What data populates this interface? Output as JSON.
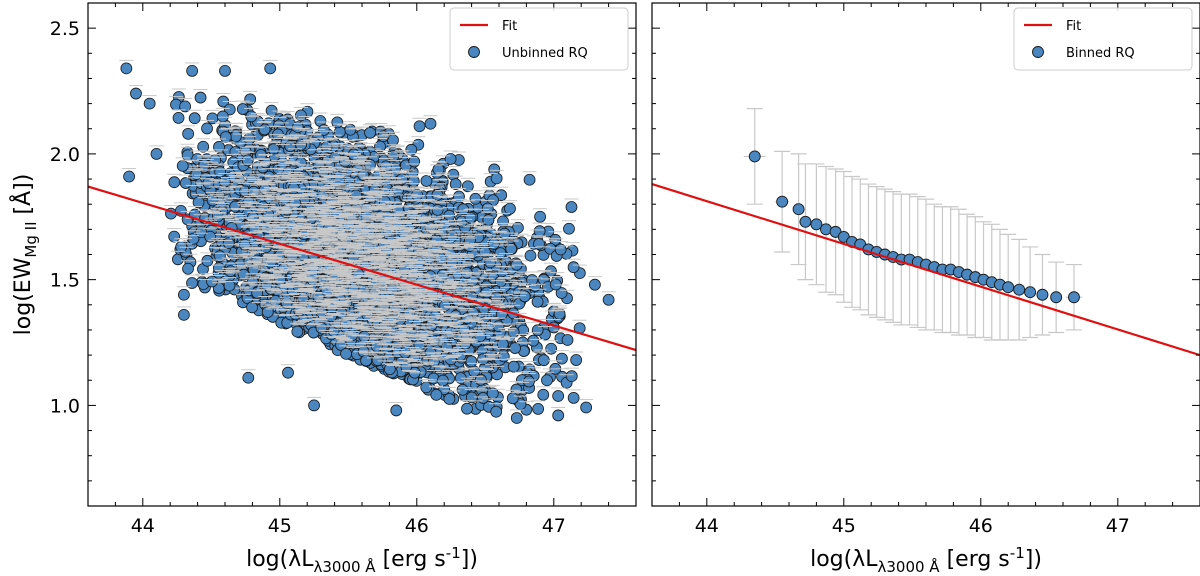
{
  "chart_data": [
    {
      "type": "scatter",
      "panel": "left",
      "xlabel": "log(λL_{λ3000 Å} [erg s^{-1}])",
      "ylabel": "log(EW_{Mg II} [Å])",
      "xlim": [
        43.6,
        47.6
      ],
      "ylim": [
        0.6,
        2.6
      ],
      "xticks": [
        44,
        45,
        46,
        47
      ],
      "yticks": [
        1.0,
        1.5,
        2.0,
        2.5
      ],
      "legend_position": "top-right",
      "colors": {
        "points": "#4a86bf",
        "fit": "#e01010",
        "errorbars": "#c8c8c8"
      },
      "series": [
        {
          "name": "Fit",
          "kind": "line",
          "x": [
            43.6,
            47.6
          ],
          "y": [
            1.87,
            1.22
          ]
        },
        {
          "name": "Unbinned RQ",
          "kind": "points",
          "notes": "dense cloud of several thousand points; centroid ~ (45.6, 1.55); listed points are readable outliers/extremes",
          "highlight_points": [
            [
              43.88,
              2.34
            ],
            [
              43.95,
              2.24
            ],
            [
              44.05,
              2.2
            ],
            [
              43.9,
              1.91
            ],
            [
              44.1,
              2.0
            ],
            [
              44.36,
              2.33
            ],
            [
              44.6,
              2.33
            ],
            [
              44.93,
              2.34
            ],
            [
              44.3,
              1.36
            ],
            [
              44.3,
              1.44
            ],
            [
              44.77,
              1.11
            ],
            [
              45.06,
              1.13
            ],
            [
              45.25,
              1.0
            ],
            [
              45.85,
              0.98
            ],
            [
              46.73,
              0.95
            ],
            [
              46.1,
              2.12
            ],
            [
              46.02,
              2.11
            ],
            [
              46.9,
              1.75
            ],
            [
              47.05,
              1.62
            ],
            [
              47.3,
              1.48
            ],
            [
              47.4,
              1.42
            ],
            [
              47.0,
              1.31
            ],
            [
              47.1,
              1.26
            ],
            [
              46.95,
              1.1
            ]
          ]
        }
      ]
    },
    {
      "type": "scatter",
      "panel": "right",
      "xlabel": "log(λL_{λ3000 Å} [erg s^{-1}])",
      "ylabel": "",
      "xlim": [
        43.6,
        47.6
      ],
      "ylim": [
        0.6,
        2.6
      ],
      "xticks": [
        44,
        45,
        46,
        47
      ],
      "yticks": [
        1.0,
        1.5,
        2.0,
        2.5
      ],
      "legend_position": "top-right",
      "colors": {
        "points": "#4a86bf",
        "fit": "#e01010",
        "errorbars": "#c8c8c8"
      },
      "series": [
        {
          "name": "Fit",
          "kind": "line",
          "x": [
            43.6,
            47.6
          ],
          "y": [
            1.88,
            1.2
          ]
        },
        {
          "name": "Binned RQ",
          "kind": "points",
          "x": [
            44.35,
            44.55,
            44.67,
            44.72,
            44.8,
            44.87,
            44.94,
            45.0,
            45.06,
            45.12,
            45.18,
            45.24,
            45.3,
            45.36,
            45.42,
            45.48,
            45.54,
            45.6,
            45.66,
            45.72,
            45.78,
            45.84,
            45.9,
            45.96,
            46.02,
            46.08,
            46.14,
            46.2,
            46.28,
            46.36,
            46.45,
            46.55,
            46.68
          ],
          "y": [
            1.99,
            1.81,
            1.78,
            1.73,
            1.72,
            1.7,
            1.69,
            1.67,
            1.65,
            1.64,
            1.62,
            1.61,
            1.6,
            1.59,
            1.58,
            1.58,
            1.57,
            1.56,
            1.55,
            1.54,
            1.54,
            1.53,
            1.52,
            1.51,
            1.5,
            1.49,
            1.48,
            1.47,
            1.46,
            1.45,
            1.44,
            1.43,
            1.43
          ],
          "yerr": [
            0.19,
            0.2,
            0.22,
            0.23,
            0.24,
            0.25,
            0.25,
            0.26,
            0.26,
            0.26,
            0.26,
            0.26,
            0.26,
            0.26,
            0.26,
            0.26,
            0.26,
            0.26,
            0.25,
            0.25,
            0.25,
            0.25,
            0.24,
            0.24,
            0.23,
            0.23,
            0.22,
            0.21,
            0.2,
            0.18,
            0.16,
            0.14,
            0.13
          ],
          "xerr": [
            0.08,
            0.05,
            0.03,
            0.03,
            0.02,
            0.02,
            0.02,
            0.02,
            0.02,
            0.02,
            0.02,
            0.02,
            0.02,
            0.02,
            0.02,
            0.02,
            0.02,
            0.02,
            0.02,
            0.02,
            0.02,
            0.02,
            0.02,
            0.02,
            0.02,
            0.02,
            0.02,
            0.02,
            0.02,
            0.02,
            0.03,
            0.04,
            0.06
          ]
        }
      ]
    }
  ]
}
